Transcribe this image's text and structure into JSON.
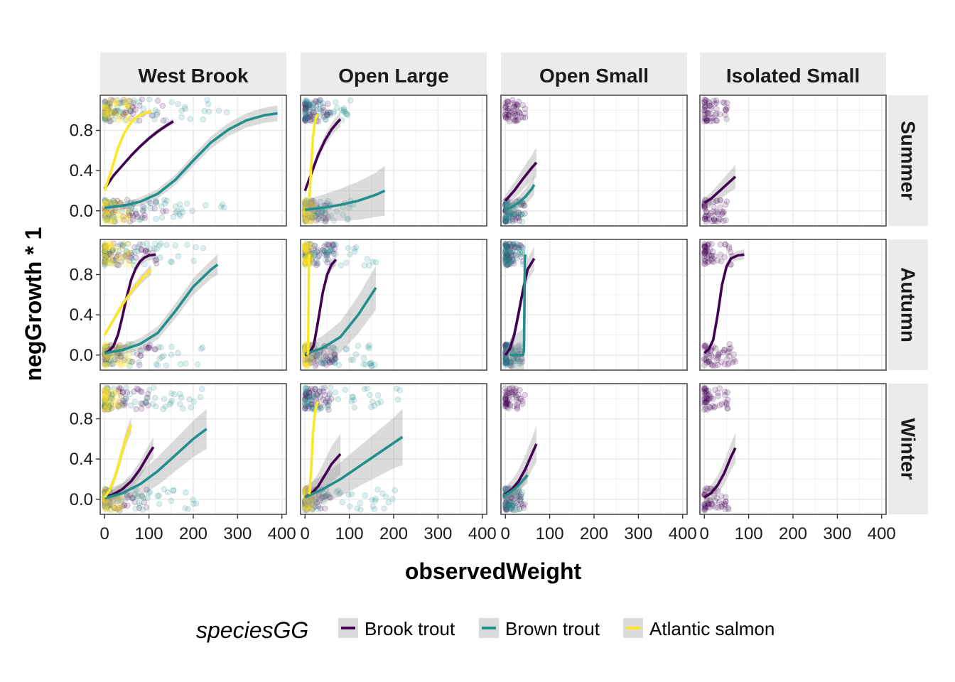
{
  "chart_data": {
    "type": "scatter",
    "xlabel": "observedWeight",
    "ylabel": "negGrowth * 1",
    "xlim": [
      -10,
      410
    ],
    "ylim": [
      -0.15,
      1.15
    ],
    "x_ticks": [
      0,
      100,
      200,
      300,
      400
    ],
    "y_ticks": [
      0.0,
      0.4,
      0.8
    ],
    "x_tick_labels": [
      "0",
      "100",
      "200",
      "300",
      "400"
    ],
    "y_tick_labels": [
      "0.0",
      "0.4",
      "0.8"
    ],
    "grid": true,
    "legend": {
      "title": "speciesGG",
      "position": "bottom",
      "entries": [
        {
          "label": "Brook trout",
          "color": "#440154"
        },
        {
          "label": "Brown trout",
          "color": "#21908C"
        },
        {
          "label": "Atlantic salmon",
          "color": "#FDE725"
        }
      ]
    },
    "columns": [
      "West Brook",
      "Open Large",
      "Open Small",
      "Isolated Small"
    ],
    "rows": [
      "Summer",
      "Autumn",
      "Winter"
    ],
    "panels": [
      [
        {
          "series": [
            {
              "name": "Brook trout",
              "x": [
                0,
                20,
                40,
                60,
                80,
                100,
                120,
                140,
                155
              ],
              "y": [
                0.22,
                0.35,
                0.45,
                0.55,
                0.64,
                0.72,
                0.79,
                0.85,
                0.89
              ],
              "band": 0.03,
              "points": {
                "xmax": 140,
                "top": true,
                "bottom": true
              }
            },
            {
              "name": "Brown trout",
              "x": [
                0,
                40,
                80,
                120,
                160,
                200,
                240,
                280,
                320,
                360,
                390
              ],
              "y": [
                0.03,
                0.05,
                0.09,
                0.17,
                0.31,
                0.5,
                0.68,
                0.81,
                0.9,
                0.95,
                0.97
              ],
              "band": 0.08,
              "points": {
                "xmax": 280,
                "top": true,
                "bottom": true
              }
            },
            {
              "name": "Atlantic salmon",
              "x": [
                0,
                15,
                30,
                45,
                60,
                75,
                90,
                105
              ],
              "y": [
                0.2,
                0.4,
                0.62,
                0.78,
                0.88,
                0.94,
                0.97,
                0.99
              ],
              "band": 0.02,
              "points": {
                "xmax": 60,
                "top": true,
                "bottom": true
              }
            }
          ]
        },
        {
          "series": [
            {
              "name": "Brook trout",
              "x": [
                0,
                15,
                30,
                45,
                60,
                75,
                80
              ],
              "y": [
                0.2,
                0.38,
                0.56,
                0.7,
                0.81,
                0.89,
                0.91
              ],
              "band": 0.08,
              "points": {
                "xmax": 60,
                "top": true,
                "bottom": true
              }
            },
            {
              "name": "Brown trout",
              "x": [
                0,
                40,
                80,
                120,
                160,
                180
              ],
              "y": [
                0.01,
                0.03,
                0.06,
                0.1,
                0.16,
                0.2
              ],
              "band": 0.25,
              "points": {
                "xmax": 110,
                "top": true,
                "bottom": true
              }
            },
            {
              "name": "Atlantic salmon",
              "x": [
                10,
                14,
                18,
                22,
                26,
                30
              ],
              "y": [
                0.13,
                0.45,
                0.73,
                0.88,
                0.94,
                0.96
              ],
              "band": 0.05,
              "points": {
                "xmax": 20,
                "top": false,
                "bottom": true
              }
            }
          ]
        },
        {
          "series": [
            {
              "name": "Brook trout",
              "x": [
                0,
                20,
                40,
                60,
                70
              ],
              "y": [
                0.1,
                0.2,
                0.32,
                0.43,
                0.48
              ],
              "band": 0.15,
              "points": {
                "xmax": 45,
                "top": true,
                "bottom": true
              }
            },
            {
              "name": "Brown trout",
              "x": [
                0,
                15,
                30,
                45,
                60,
                65
              ],
              "y": [
                0.01,
                0.04,
                0.08,
                0.14,
                0.22,
                0.26
              ],
              "band": 0.1,
              "points": {
                "xmax": 40,
                "top": false,
                "bottom": true
              }
            }
          ]
        },
        {
          "series": [
            {
              "name": "Brook trout",
              "x": [
                0,
                15,
                30,
                45,
                60,
                70
              ],
              "y": [
                0.08,
                0.12,
                0.18,
                0.24,
                0.3,
                0.34
              ],
              "band": 0.12,
              "points": {
                "xmax": 55,
                "top": true,
                "bottom": true
              }
            }
          ]
        }
      ],
      [
        {
          "series": [
            {
              "name": "Brook trout",
              "x": [
                0,
                10,
                20,
                30,
                40,
                50,
                60,
                70,
                80,
                90,
                100,
                115
              ],
              "y": [
                0.02,
                0.04,
                0.09,
                0.2,
                0.38,
                0.58,
                0.75,
                0.86,
                0.93,
                0.97,
                0.99,
                1.0
              ],
              "band": 0.05,
              "points": {
                "xmax": 120,
                "top": true,
                "bottom": true
              }
            },
            {
              "name": "Brown trout",
              "x": [
                0,
                40,
                80,
                120,
                160,
                200,
                240,
                255
              ],
              "y": [
                0.02,
                0.05,
                0.11,
                0.22,
                0.44,
                0.68,
                0.85,
                0.9
              ],
              "band": 0.1,
              "points": {
                "xmax": 230,
                "top": true,
                "bottom": true
              }
            },
            {
              "name": "Atlantic salmon",
              "x": [
                0,
                20,
                40,
                60,
                80,
                105
              ],
              "y": [
                0.2,
                0.35,
                0.5,
                0.63,
                0.74,
                0.85
              ],
              "band": 0.05,
              "points": {
                "xmax": 60,
                "top": true,
                "bottom": true
              }
            }
          ]
        },
        {
          "series": [
            {
              "name": "Brook trout",
              "x": [
                0,
                10,
                20,
                30,
                40,
                50,
                60,
                70
              ],
              "y": [
                0.0,
                0.02,
                0.1,
                0.35,
                0.62,
                0.8,
                0.9,
                0.95
              ],
              "band": 0.06,
              "points": {
                "xmax": 70,
                "top": true,
                "bottom": true
              }
            },
            {
              "name": "Brown trout",
              "x": [
                0,
                40,
                80,
                120,
                160
              ],
              "y": [
                0.01,
                0.07,
                0.18,
                0.4,
                0.67
              ],
              "band": 0.22,
              "points": {
                "xmax": 160,
                "top": true,
                "bottom": true
              }
            },
            {
              "name": "Atlantic salmon",
              "x": [
                5,
                6,
                7,
                8,
                9,
                10,
                11
              ],
              "y": [
                0.0,
                0.01,
                0.02,
                0.5,
                0.97,
                0.99,
                1.0
              ],
              "band": 0.01,
              "points": {
                "xmax": 15,
                "top": true,
                "bottom": true
              }
            }
          ]
        },
        {
          "series": [
            {
              "name": "Brook trout",
              "x": [
                0,
                10,
                20,
                30,
                40,
                50,
                65
              ],
              "y": [
                0.0,
                0.06,
                0.2,
                0.42,
                0.65,
                0.85,
                0.96
              ],
              "band": 0.12,
              "points": {
                "xmax": 40,
                "top": true,
                "bottom": true
              }
            },
            {
              "name": "Brown trout",
              "x": [
                10,
                20,
                30,
                40,
                42,
                43,
                44,
                45
              ],
              "y": [
                0.0,
                0.0,
                0.0,
                0.0,
                0.05,
                0.5,
                0.95,
                1.0
              ],
              "band": 0.4,
              "points": {
                "xmax": 40,
                "top": true,
                "bottom": true
              }
            }
          ]
        },
        {
          "series": [
            {
              "name": "Brook trout",
              "x": [
                0,
                10,
                20,
                30,
                40,
                50,
                60,
                75,
                90
              ],
              "y": [
                0.02,
                0.06,
                0.15,
                0.4,
                0.7,
                0.88,
                0.96,
                0.99,
                1.0
              ],
              "band": 0.05,
              "points": {
                "xmax": 70,
                "top": true,
                "bottom": true
              }
            }
          ]
        }
      ],
      [
        {
          "series": [
            {
              "name": "Brook trout",
              "x": [
                0,
                20,
                40,
                60,
                80,
                100,
                110
              ],
              "y": [
                0.02,
                0.05,
                0.1,
                0.18,
                0.3,
                0.45,
                0.52
              ],
              "band": 0.1,
              "points": {
                "xmax": 100,
                "top": true,
                "bottom": true
              }
            },
            {
              "name": "Brown trout",
              "x": [
                0,
                40,
                80,
                120,
                160,
                200,
                230
              ],
              "y": [
                0.01,
                0.06,
                0.15,
                0.28,
                0.44,
                0.6,
                0.7
              ],
              "band": 0.2,
              "points": {
                "xmax": 220,
                "top": true,
                "bottom": true
              }
            },
            {
              "name": "Atlantic salmon",
              "x": [
                0,
                10,
                20,
                30,
                40,
                50,
                60
              ],
              "y": [
                0.02,
                0.08,
                0.18,
                0.32,
                0.48,
                0.63,
                0.74
              ],
              "band": 0.08,
              "points": {
                "xmax": 40,
                "top": true,
                "bottom": true
              }
            }
          ]
        },
        {
          "series": [
            {
              "name": "Brook trout",
              "x": [
                0,
                15,
                30,
                45,
                60,
                80
              ],
              "y": [
                0.02,
                0.06,
                0.13,
                0.24,
                0.35,
                0.45
              ],
              "band": 0.2,
              "points": {
                "xmax": 60,
                "top": true,
                "bottom": true
              }
            },
            {
              "name": "Brown trout",
              "x": [
                0,
                40,
                80,
                120,
                160,
                200,
                220
              ],
              "y": [
                0.02,
                0.1,
                0.2,
                0.32,
                0.44,
                0.56,
                0.62
              ],
              "band": 0.28,
              "points": {
                "xmax": 220,
                "top": true,
                "bottom": true
              }
            },
            {
              "name": "Atlantic salmon",
              "x": [
                10,
                14,
                18,
                22,
                26,
                30
              ],
              "y": [
                0.05,
                0.3,
                0.65,
                0.85,
                0.94,
                0.97
              ],
              "band": 0.05,
              "points": {
                "xmax": 20,
                "top": false,
                "bottom": true
              }
            }
          ]
        },
        {
          "series": [
            {
              "name": "Brook trout",
              "x": [
                0,
                15,
                30,
                45,
                60,
                70
              ],
              "y": [
                0.05,
                0.1,
                0.18,
                0.3,
                0.45,
                0.55
              ],
              "band": 0.18,
              "points": {
                "xmax": 45,
                "top": true,
                "bottom": true
              }
            },
            {
              "name": "Brown trout",
              "x": [
                0,
                10,
                20,
                30,
                40,
                50
              ],
              "y": [
                0.04,
                0.07,
                0.1,
                0.14,
                0.19,
                0.24
              ],
              "band": 0.08,
              "points": {
                "xmax": 40,
                "top": false,
                "bottom": true
              }
            }
          ]
        },
        {
          "series": [
            {
              "name": "Brook trout",
              "x": [
                0,
                15,
                30,
                45,
                60,
                70
              ],
              "y": [
                0.02,
                0.06,
                0.14,
                0.26,
                0.42,
                0.51
              ],
              "band": 0.15,
              "points": {
                "xmax": 55,
                "top": true,
                "bottom": true
              }
            }
          ]
        }
      ]
    ]
  }
}
